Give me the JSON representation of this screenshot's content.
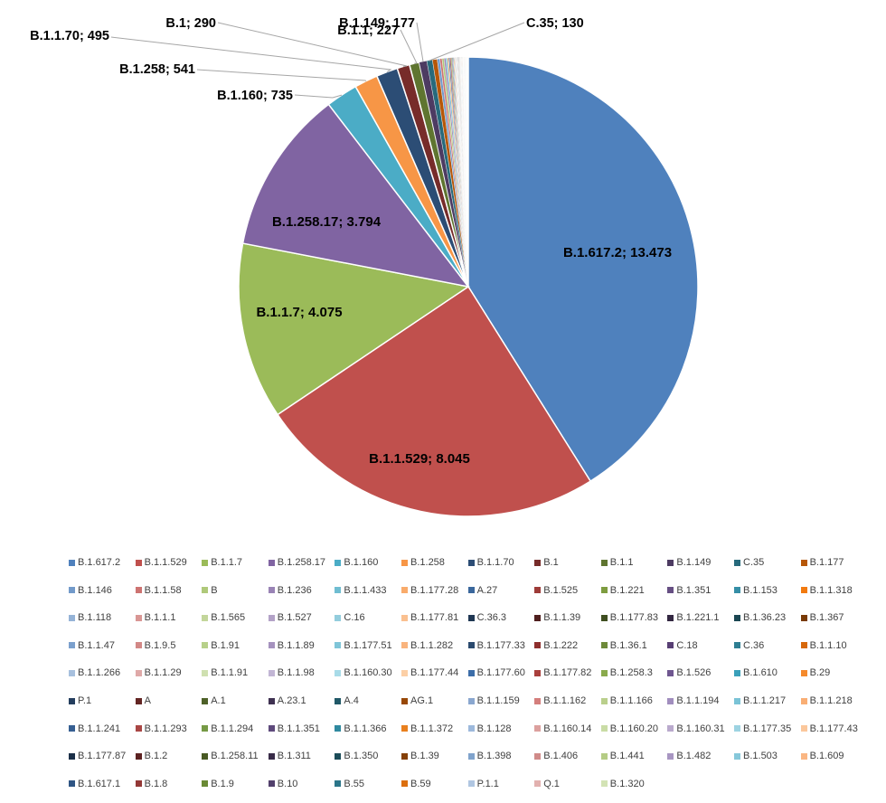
{
  "chart_data": {
    "type": "pie",
    "start_angle_deg": 0,
    "legend_position": "bottom",
    "legend_columns": 12,
    "slices": [
      {
        "label": "B.1.617.2",
        "value": 13473,
        "display": "B.1.617.2; 13.473",
        "color": "#4F81BD"
      },
      {
        "label": "B.1.1.529",
        "value": 8045,
        "display": "B.1.1.529; 8.045",
        "color": "#C0504D"
      },
      {
        "label": "B.1.1.7",
        "value": 4075,
        "display": "B.1.1.7; 4.075",
        "color": "#9BBB59"
      },
      {
        "label": "B.1.258.17",
        "value": 3794,
        "display": "B.1.258.17; 3.794",
        "color": "#8064A2"
      },
      {
        "label": "B.1.160",
        "value": 735,
        "display": "B.1.160; 735",
        "color": "#4BACC6"
      },
      {
        "label": "B.1.258",
        "value": 541,
        "display": "B.1.258; 541",
        "color": "#F79646"
      },
      {
        "label": "B.1.1.70",
        "value": 495,
        "display": "B.1.1.70; 495",
        "color": "#2C4D75"
      },
      {
        "label": "B.1",
        "value": 290,
        "display": "B.1; 290",
        "color": "#772C2A"
      },
      {
        "label": "B.1.1",
        "value": 227,
        "display": "B.1.1; 227",
        "color": "#5F7530"
      },
      {
        "label": "B.1.149",
        "value": 177,
        "display": "B.1.149; 177",
        "color": "#4D3B62"
      },
      {
        "label": "C.35",
        "value": 130,
        "display": "C.35; 130",
        "color": "#276A7C"
      },
      {
        "label": "B.1.177",
        "value": 110,
        "color": "#B65708"
      },
      {
        "label": "B.1.146",
        "value": 60,
        "color": "#729ACA"
      },
      {
        "label": "B.1.1.58",
        "value": 50,
        "color": "#CD7371"
      },
      {
        "label": "B",
        "value": 45,
        "color": "#AFC97A"
      },
      {
        "label": "B.1.236",
        "value": 40,
        "color": "#9983B5"
      },
      {
        "label": "B.1.1.433",
        "value": 35,
        "color": "#6FBDD1"
      },
      {
        "label": "B.1.177.28",
        "value": 30,
        "color": "#F9AB6B"
      },
      {
        "label": "A.27",
        "value": 27,
        "color": "#3A679C"
      },
      {
        "label": "B.1.525",
        "value": 25,
        "color": "#9E3B38"
      },
      {
        "label": "B.1.221",
        "value": 22,
        "color": "#7E9C40"
      },
      {
        "label": "B.1.351",
        "value": 20,
        "color": "#664F83"
      },
      {
        "label": "B.1.153",
        "value": 18,
        "color": "#358EA6"
      },
      {
        "label": "B.1.1.318",
        "value": 16,
        "color": "#F27A0F"
      },
      {
        "label": "B.1.118",
        "value": 15,
        "color": "#95B3D7"
      },
      {
        "label": "B.1.1.1",
        "value": 14,
        "color": "#D99694"
      },
      {
        "label": "B.1.565",
        "value": 13,
        "color": "#C3D69B"
      },
      {
        "label": "B.1.527",
        "value": 12,
        "color": "#B3A2C7"
      },
      {
        "label": "C.16",
        "value": 11,
        "color": "#93CDDD"
      },
      {
        "label": "B.1.177.81",
        "value": 10,
        "color": "#FAC090"
      },
      {
        "label": "C.36.3",
        "value": 10,
        "color": "#1F3753"
      },
      {
        "label": "B.1.1.39",
        "value": 9,
        "color": "#4F1F1E"
      },
      {
        "label": "B.1.177.83",
        "value": 9,
        "color": "#3F4E20"
      },
      {
        "label": "B.1.221.1",
        "value": 8,
        "color": "#332741"
      },
      {
        "label": "B.1.36.23",
        "value": 8,
        "color": "#1A4652"
      },
      {
        "label": "B.1.367",
        "value": 8,
        "color": "#793A05"
      },
      {
        "label": "B.1.1.47",
        "value": 7,
        "color": "#7BA0CD"
      },
      {
        "label": "B.1.9.5",
        "value": 7,
        "color": "#D28886"
      },
      {
        "label": "B.1.91",
        "value": 7,
        "color": "#B7D08A"
      },
      {
        "label": "B.1.1.89",
        "value": 6,
        "color": "#A592BE"
      },
      {
        "label": "B.1.177.51",
        "value": 6,
        "color": "#7FC5D8"
      },
      {
        "label": "B.1.1.282",
        "value": 6,
        "color": "#F9B47E"
      },
      {
        "label": "B.1.177.33",
        "value": 6,
        "color": "#2B4A6E"
      },
      {
        "label": "B.1.222",
        "value": 5,
        "color": "#8E2F2D"
      },
      {
        "label": "B.1.36.1",
        "value": 5,
        "color": "#6E8A3A"
      },
      {
        "label": "C.18",
        "value": 5,
        "color": "#583F74"
      },
      {
        "label": "C.36",
        "value": 5,
        "color": "#2E7E92"
      },
      {
        "label": "B.1.1.10",
        "value": 5,
        "color": "#D7680B"
      },
      {
        "label": "B.1.1.266",
        "value": 4,
        "color": "#A7C0DE"
      },
      {
        "label": "B.1.1.29",
        "value": 4,
        "color": "#DFA9A8"
      },
      {
        "label": "B.1.1.91",
        "value": 4,
        "color": "#CFE0B0"
      },
      {
        "label": "B.1.1.98",
        "value": 4,
        "color": "#C2B6D5"
      },
      {
        "label": "B.1.160.30",
        "value": 4,
        "color": "#A8DBE8"
      },
      {
        "label": "B.1.177.44",
        "value": 4,
        "color": "#FCCFA6"
      },
      {
        "label": "B.1.177.60",
        "value": 4,
        "color": "#3C6DA8"
      },
      {
        "label": "B.1.177.82",
        "value": 4,
        "color": "#A93F3C"
      },
      {
        "label": "B.1.258.3",
        "value": 3,
        "color": "#8AAA4C"
      },
      {
        "label": "B.1.526",
        "value": 3,
        "color": "#6F5790"
      },
      {
        "label": "B.1.610",
        "value": 3,
        "color": "#3AA0BA"
      },
      {
        "label": "B.29",
        "value": 3,
        "color": "#F58A2C"
      },
      {
        "label": "P.1",
        "value": 3,
        "color": "#243E5E"
      },
      {
        "label": "A",
        "value": 3,
        "color": "#632523"
      },
      {
        "label": "A.1",
        "value": 3,
        "color": "#4E6128"
      },
      {
        "label": "A.23.1",
        "value": 3,
        "color": "#3F3151"
      },
      {
        "label": "A.4",
        "value": 3,
        "color": "#205867"
      },
      {
        "label": "AG.1",
        "value": 3,
        "color": "#984807"
      },
      {
        "label": "B.1.1.159",
        "value": 2,
        "color": "#8AA7CF"
      },
      {
        "label": "B.1.1.162",
        "value": 2,
        "color": "#D47E7C"
      },
      {
        "label": "B.1.1.166",
        "value": 2,
        "color": "#BACF8C"
      },
      {
        "label": "B.1.1.194",
        "value": 2,
        "color": "#A18EBE"
      },
      {
        "label": "B.1.1.217",
        "value": 2,
        "color": "#7AC3D6"
      },
      {
        "label": "B.1.1.218",
        "value": 2,
        "color": "#F9AE74"
      },
      {
        "label": "B.1.1.241",
        "value": 2,
        "color": "#365F92"
      },
      {
        "label": "B.1.1.293",
        "value": 2,
        "color": "#A94644"
      },
      {
        "label": "B.1.1.294",
        "value": 2,
        "color": "#769A45"
      },
      {
        "label": "B.1.1.351",
        "value": 2,
        "color": "#5E4A7C"
      },
      {
        "label": "B.1.1.366",
        "value": 2,
        "color": "#2F899F"
      },
      {
        "label": "B.1.1.372",
        "value": 2,
        "color": "#E9801E"
      },
      {
        "label": "B.1.128",
        "value": 2,
        "color": "#9DB9DC"
      },
      {
        "label": "B.1.160.14",
        "value": 2,
        "color": "#DCA09E"
      },
      {
        "label": "B.1.160.20",
        "value": 2,
        "color": "#C9DCA5"
      },
      {
        "label": "B.1.160.31",
        "value": 2,
        "color": "#BAAACD"
      },
      {
        "label": "B.1.177.35",
        "value": 2,
        "color": "#9DD3E2"
      },
      {
        "label": "B.1.177.43",
        "value": 2,
        "color": "#FBC79B"
      },
      {
        "label": "B.1.177.87",
        "value": 2,
        "color": "#1B2F48"
      },
      {
        "label": "B.1.2",
        "value": 2,
        "color": "#5C2221"
      },
      {
        "label": "B.1.258.11",
        "value": 2,
        "color": "#495A24"
      },
      {
        "label": "B.1.311",
        "value": 2,
        "color": "#382B48"
      },
      {
        "label": "B.1.350",
        "value": 2,
        "color": "#1C4C59"
      },
      {
        "label": "B.1.39",
        "value": 2,
        "color": "#854006"
      },
      {
        "label": "B.1.398",
        "value": 1,
        "color": "#80A3CC"
      },
      {
        "label": "B.1.406",
        "value": 1,
        "color": "#D08B89"
      },
      {
        "label": "B.1.441",
        "value": 1,
        "color": "#B5CC85"
      },
      {
        "label": "B.1.482",
        "value": 1,
        "color": "#A896C2"
      },
      {
        "label": "B.1.503",
        "value": 1,
        "color": "#86C8DA"
      },
      {
        "label": "B.1.609",
        "value": 1,
        "color": "#FAB683"
      },
      {
        "label": "B.1.617.1",
        "value": 1,
        "color": "#2F5584"
      },
      {
        "label": "B.1.8",
        "value": 1,
        "color": "#933836"
      },
      {
        "label": "B.1.9",
        "value": 1,
        "color": "#6A8A35"
      },
      {
        "label": "B.10",
        "value": 1,
        "color": "#52406C"
      },
      {
        "label": "B.55",
        "value": 1,
        "color": "#2B7589"
      },
      {
        "label": "B.59",
        "value": 1,
        "color": "#DC6F0E"
      },
      {
        "label": "P.1.1",
        "value": 1,
        "color": "#B0C6E1"
      },
      {
        "label": "Q.1",
        "value": 1,
        "color": "#E2B1AF"
      },
      {
        "label": "B.1.320",
        "value": 1,
        "color": "#D3E3B5"
      }
    ]
  }
}
